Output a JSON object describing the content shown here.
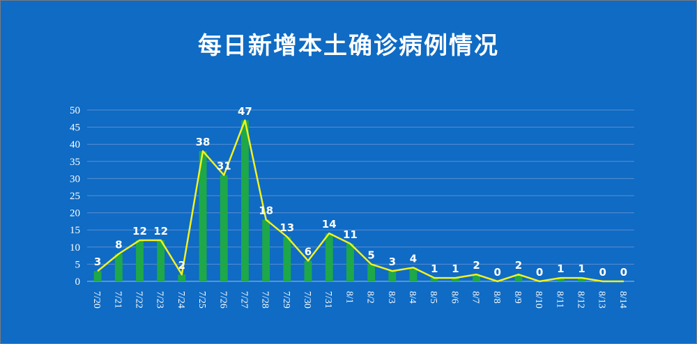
{
  "title": "每日新增本土确诊病例情况",
  "colors": {
    "background": "#0f6bc4",
    "bar": "#1ea84a",
    "line": "#f2f21e",
    "grid": "#5b8fd0",
    "text": "#ffffff"
  },
  "chart_data": {
    "type": "bar",
    "title": "每日新增本土确诊病例情况",
    "categories": [
      "7/20",
      "7/21",
      "7/22",
      "7/23",
      "7/24",
      "7/25",
      "7/26",
      "7/27",
      "7/28",
      "7/29",
      "7/30",
      "7/31",
      "8/1",
      "8/2",
      "8/3",
      "8/4",
      "8/5",
      "8/6",
      "8/7",
      "8/8",
      "8/9",
      "8/10",
      "8/11",
      "8/12",
      "8/13",
      "8/14"
    ],
    "values": [
      3,
      8,
      12,
      12,
      2,
      38,
      31,
      47,
      18,
      13,
      6,
      14,
      11,
      5,
      3,
      4,
      1,
      1,
      2,
      0,
      2,
      0,
      1,
      1,
      0,
      0
    ],
    "overlay_line": true,
    "data_labels": true,
    "yticks": [
      "0",
      "5",
      "10",
      "15",
      "20",
      "25",
      "30",
      "35",
      "40",
      "45",
      "50"
    ],
    "ylim": [
      0,
      50
    ],
    "grid": true,
    "legend": "none"
  }
}
